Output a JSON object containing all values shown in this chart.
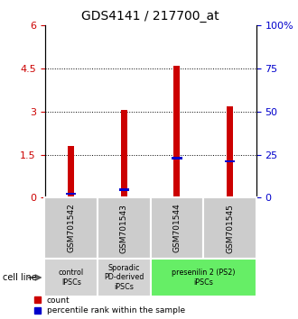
{
  "title": "GDS4141 / 217700_at",
  "samples": [
    "GSM701542",
    "GSM701543",
    "GSM701544",
    "GSM701545"
  ],
  "count_values": [
    1.8,
    3.05,
    4.6,
    3.2
  ],
  "blue_y": [
    0.15,
    0.28,
    1.38,
    1.28
  ],
  "left_ylim": [
    0,
    6
  ],
  "left_yticks": [
    0,
    1.5,
    3.0,
    4.5,
    6.0
  ],
  "left_yticklabels": [
    "0",
    "1.5",
    "3",
    "4.5",
    "6"
  ],
  "right_ylim": [
    0,
    100
  ],
  "right_yticks": [
    0,
    25,
    50,
    75,
    100
  ],
  "right_yticklabels": [
    "0",
    "25",
    "50",
    "75",
    "100%"
  ],
  "bar_color": "#cc0000",
  "percentile_color": "#0000cc",
  "bar_width": 0.12,
  "cell_line_labels": [
    "control\nIPSCs",
    "Sporadic\nPD-derived\niPSCs",
    "presenilin 2 (PS2)\niPSCs"
  ],
  "cell_line_colors": [
    "#d3d3d3",
    "#d3d3d3",
    "#66ee66"
  ],
  "cell_line_spans": [
    [
      0,
      1
    ],
    [
      1,
      2
    ],
    [
      2,
      4
    ]
  ],
  "cell_line_label": "cell line",
  "legend_count": "count",
  "legend_percentile": "percentile rank within the sample",
  "left_tick_color": "#cc0000",
  "right_tick_color": "#0000cc",
  "title_fontsize": 10,
  "tick_fontsize": 8,
  "sample_box_color": "#cccccc",
  "grid_dotted_color": "#333333"
}
